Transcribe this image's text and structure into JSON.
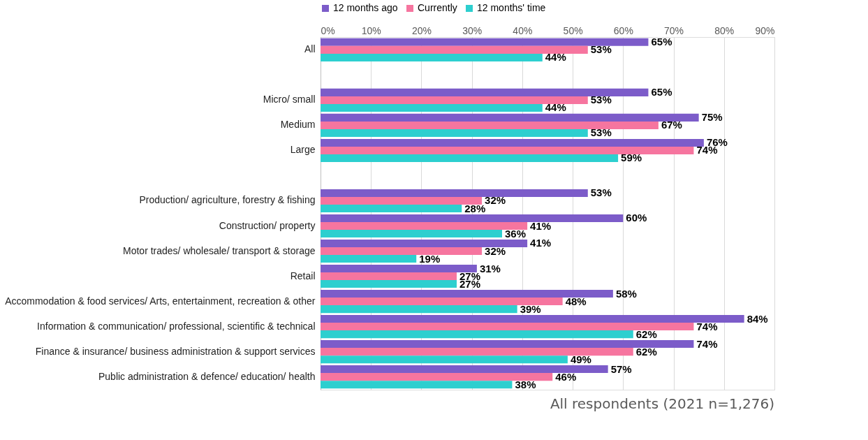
{
  "chart_data": {
    "type": "bar",
    "orientation": "horizontal",
    "categories": [
      "All",
      null,
      "Micro/ small",
      "Medium",
      "Large",
      null,
      "Production/ agriculture, forestry & fishing",
      "Construction/ property",
      "Motor trades/ wholesale/ transport & storage",
      "Retail",
      "Accommodation & food services/ Arts, entertainment, recreation & other",
      "Information & communication/ professional, scientific & technical",
      "Finance & insurance/ business administration & support services",
      "Public administration & defence/ education/ health"
    ],
    "series": [
      {
        "name": "12 months ago",
        "color": "#7c5cc9",
        "values": [
          65,
          null,
          65,
          75,
          76,
          null,
          53,
          60,
          41,
          31,
          58,
          84,
          74,
          57
        ],
        "value_labels": [
          "65%",
          null,
          "65%",
          "75%",
          "76%",
          null,
          "53%",
          "60%",
          "41%",
          "31%",
          "58%",
          "84%",
          "74%",
          "57%"
        ]
      },
      {
        "name": "Currently",
        "color": "#f6759f",
        "values": [
          53,
          null,
          53,
          67,
          74,
          null,
          32,
          41,
          32,
          27,
          48,
          74,
          62,
          46
        ],
        "value_labels": [
          "53%",
          null,
          "53%",
          "67%",
          "74%",
          null,
          "32%",
          "41%",
          "32%",
          "27%",
          "48%",
          "74%",
          "62%",
          "46%"
        ]
      },
      {
        "name": "12 months' time",
        "color": "#2dcfcf",
        "values": [
          44,
          null,
          44,
          53,
          59,
          null,
          28,
          36,
          19,
          27,
          39,
          62,
          49,
          38
        ],
        "value_labels": [
          "44%",
          null,
          "44%",
          "53%",
          "59%",
          null,
          "28%",
          "36%",
          "19%",
          "27%",
          "39%",
          "62%",
          "49%",
          "38%"
        ]
      }
    ],
    "xlim": [
      0,
      90
    ],
    "xticks": [
      {
        "value": 0,
        "label": "0%"
      },
      {
        "value": 10,
        "label": "10%"
      },
      {
        "value": 20,
        "label": "20%"
      },
      {
        "value": 30,
        "label": "30%"
      },
      {
        "value": 40,
        "label": "40%"
      },
      {
        "value": 50,
        "label": "50%"
      },
      {
        "value": 60,
        "label": "60%"
      },
      {
        "value": 70,
        "label": "70%"
      },
      {
        "value": 80,
        "label": "80%"
      },
      {
        "value": 90,
        "label": "90%"
      }
    ],
    "grid": "x",
    "legend": "top",
    "annotations": [
      "All respondents (2021 n=1,276)"
    ]
  }
}
